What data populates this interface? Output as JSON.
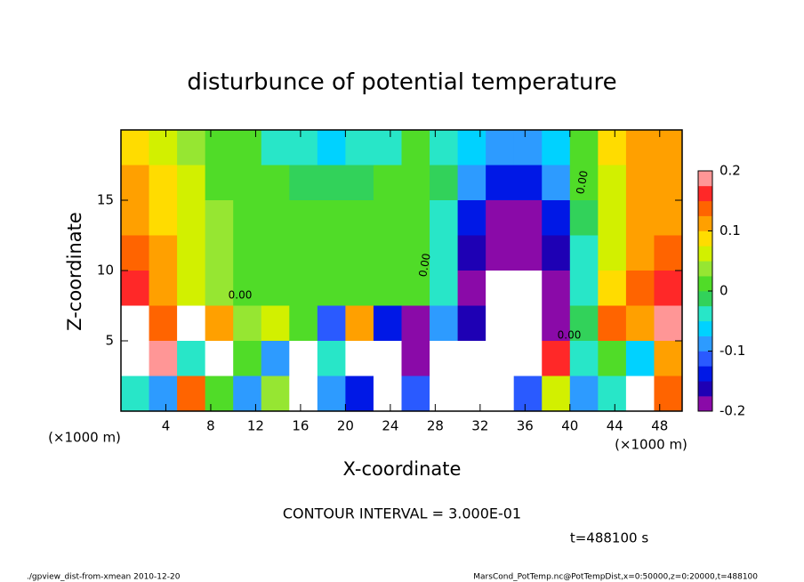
{
  "chart_data": {
    "type": "heatmap",
    "title": "disturbunce of potential temperature",
    "x_label": "X-coordinate",
    "y_label": "Z-coordinate",
    "x_unit": "(×1000 m)",
    "y_unit": "(×1000 m)",
    "annotations": [
      "CONTOUR INTERVAL = 3.000E-01",
      "t=488100 s"
    ],
    "footer_left": "./gpview_dist-from-xmean  2010-12-20",
    "footer_right": "MarsCond_PotTemp.nc@PotTempDist,x=0:50000,z=0:20000,t=488100",
    "contour_label": "0.00",
    "xlim": [
      0,
      50
    ],
    "ylim": [
      0,
      20
    ],
    "xticks": [
      4,
      8,
      12,
      16,
      20,
      24,
      28,
      32,
      36,
      40,
      44,
      48
    ],
    "yticks": [
      5,
      10,
      15
    ],
    "clim": [
      -0.2,
      0.2
    ],
    "cticks": [
      0.2,
      0.1,
      0,
      -0.1,
      -0.2
    ],
    "colors": [
      "#8a0aa8",
      "#1e00b4",
      "#0018e6",
      "#2a5aff",
      "#2d9bff",
      "#00d2ff",
      "#28e6c8",
      "#32d25a",
      "#50dc28",
      "#96e632",
      "#d2f000",
      "#ffdc00",
      "#ffa000",
      "#ff6400",
      "#ff2828",
      "#ff9696"
    ],
    "out_of_range_color": "#ffffff",
    "x": [
      1.25,
      3.75,
      6.25,
      8.75,
      11.25,
      13.75,
      16.25,
      18.75,
      21.25,
      23.75,
      26.25,
      28.75,
      31.25,
      33.75,
      36.25,
      38.75,
      41.25,
      43.75,
      46.25,
      48.75
    ],
    "y": [
      18.75,
      16.25,
      13.75,
      11.25,
      8.75,
      6.25,
      3.75,
      1.25
    ],
    "values": [
      [
        0.08,
        0.06,
        0.03,
        0.01,
        0,
        -0.03,
        -0.05,
        -0.07,
        -0.05,
        -0.03,
        0,
        -0.03,
        -0.06,
        -0.08,
        -0.08,
        -0.06,
        0.01,
        0.08,
        0.1,
        0.11
      ],
      [
        0.1,
        0.08,
        0.05,
        0.02,
        0.01,
        0,
        -0.01,
        -0.02,
        -0.01,
        0,
        0.01,
        -0.02,
        -0.1,
        -0.14,
        -0.14,
        -0.1,
        0,
        0.06,
        0.1,
        0.11
      ],
      [
        0.12,
        0.09,
        0.06,
        0.03,
        0.02,
        0.01,
        0,
        0,
        0,
        0.01,
        0.01,
        -0.03,
        -0.15,
        -0.18,
        -0.18,
        -0.14,
        -0.01,
        0.06,
        0.1,
        0.12
      ],
      [
        0.14,
        0.1,
        0.06,
        0.03,
        0.02,
        0.01,
        0.01,
        0,
        0,
        0.01,
        0.01,
        -0.05,
        -0.17,
        -0.2,
        -0.2,
        -0.17,
        -0.03,
        0.07,
        0.12,
        0.14
      ],
      [
        0.17,
        0.12,
        0.07,
        0.04,
        0.02,
        0.01,
        0.01,
        0.01,
        0.01,
        0.01,
        0.01,
        -0.05,
        -0.19,
        -0.25,
        -0.25,
        -0.2,
        -0.04,
        0.09,
        0.15,
        0.17
      ],
      [
        0.22,
        0.15,
        0.21,
        0.1,
        0.03,
        0.05,
        0,
        -0.12,
        0.12,
        -0.15,
        -0.2,
        -0.1,
        -0.17,
        -0.25,
        -0.25,
        -0.2,
        -0.02,
        0.15,
        0.1,
        0.2
      ],
      [
        0.25,
        0.18,
        -0.05,
        0.22,
        0.02,
        -0.08,
        0.25,
        -0.05,
        -0.25,
        -0.22,
        -0.18,
        -0.21,
        -0.25,
        -0.25,
        -0.22,
        0.16,
        -0.04,
        0.02,
        -0.06,
        0.12
      ],
      [
        -0.05,
        -0.08,
        0.15,
        0.02,
        -0.1,
        0.04,
        -0.22,
        -0.1,
        -0.15,
        -0.25,
        -0.12,
        -0.25,
        -0.25,
        -0.25,
        -0.12,
        0.05,
        -0.08,
        -0.05,
        0.21,
        0.15
      ]
    ]
  }
}
